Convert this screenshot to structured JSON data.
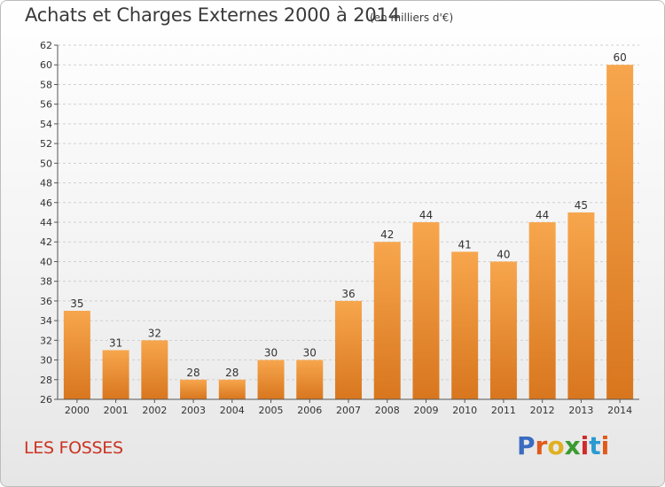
{
  "header": {
    "title": "Achats et Charges Externes 2000 à 2014",
    "unit": "(en milliers d'€)"
  },
  "footer": {
    "location": "LES FOSSES",
    "logo_text": "Proxiti"
  },
  "colors": {
    "bar_top": "#f7a64d",
    "bar_bottom": "#d8761e",
    "grid": "#d0d0d0",
    "axis": "#555555",
    "location": "#cc3322",
    "logo_letters": [
      "#3a6cc0",
      "#e05a1a",
      "#e0b020",
      "#3a9a30",
      "#d02a2a",
      "#2a9ad0",
      "#e05a1a"
    ]
  },
  "chart_data": {
    "type": "bar",
    "title": "Achats et Charges Externes 2000 à 2014",
    "subtitle": "(en milliers d'€)",
    "xlabel": "",
    "ylabel": "",
    "categories": [
      "2000",
      "2001",
      "2002",
      "2003",
      "2004",
      "2005",
      "2006",
      "2007",
      "2008",
      "2009",
      "2010",
      "2011",
      "2012",
      "2013",
      "2014"
    ],
    "values": [
      35,
      31,
      32,
      28,
      28,
      30,
      30,
      36,
      42,
      44,
      41,
      40,
      44,
      45,
      60
    ],
    "ylim": [
      26,
      62
    ],
    "yticks": [
      26,
      28,
      30,
      32,
      34,
      36,
      38,
      40,
      42,
      44,
      46,
      48,
      50,
      52,
      54,
      56,
      58,
      60,
      62
    ],
    "grid": true,
    "data_labels": true
  }
}
